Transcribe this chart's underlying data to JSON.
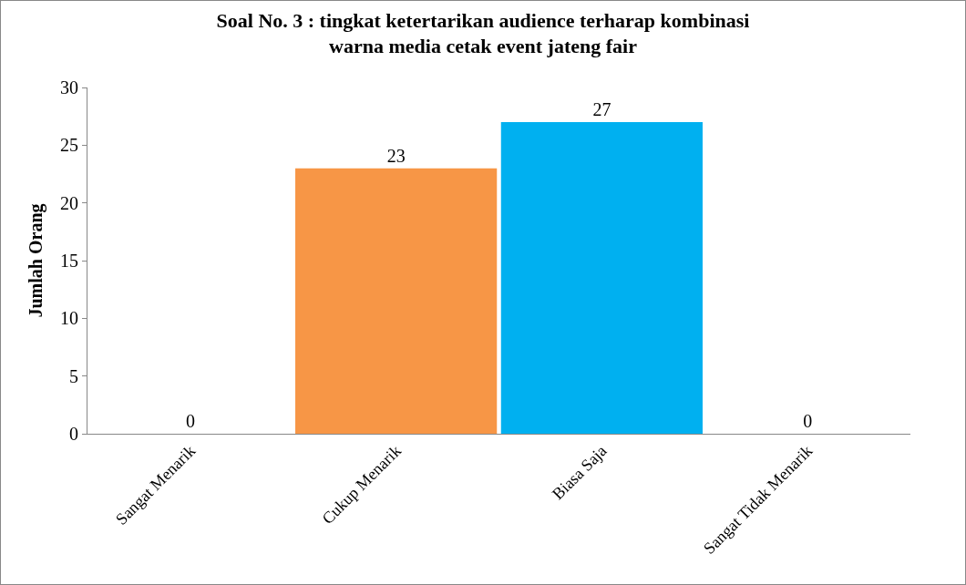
{
  "chart_data": {
    "type": "bar",
    "title": "Soal No. 3 : tingkat ketertarikan audience terharap kombinasi\nwarna media cetak event jateng fair",
    "ylabel": "Jumlah Orang",
    "categories": [
      "Sangat Menarik",
      "Cukup Menarik",
      "Biasa Saja",
      "Sangat Tidak Menarik"
    ],
    "values": [
      0,
      23,
      27,
      0
    ],
    "colors": [
      "#f79646",
      "#f79646",
      "#00b0f0",
      "#00b0f0"
    ],
    "ylim": [
      0,
      30
    ],
    "yticks": [
      0,
      5,
      10,
      15,
      20,
      25,
      30
    ],
    "grid": false,
    "data_labels": true
  }
}
